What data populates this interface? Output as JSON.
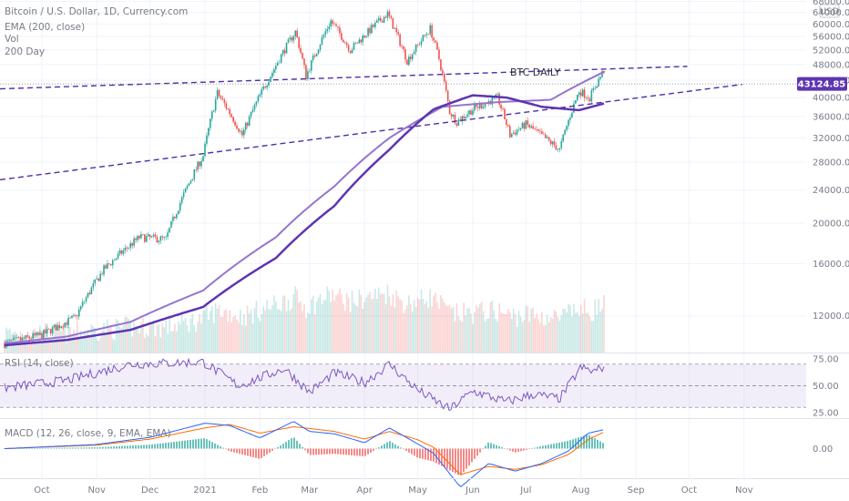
{
  "legend": {
    "symbol": "Bitcoin / U.S. Dollar, 1D, Currency.com",
    "ema": "EMA (200, close)",
    "vol": "Vol",
    "ma": "200 Day"
  },
  "annotation": "BTC DAILY",
  "currency_badge": "USD",
  "last_price_label": "43124.85",
  "rsi_label": "RSI (14, close)",
  "macd_label": "MACD (12, 26, close, 9, EMA, EMA)",
  "colors": {
    "up": "#26a69a",
    "down": "#ef5350",
    "ema": "#5e35b1",
    "sma": "#9575cd",
    "trend": "#512da8",
    "rsi": "#7e57c2",
    "macd": "#2962ff",
    "signal": "#ff6d00"
  },
  "chart_data": [
    {
      "type": "candlestick",
      "title": "Bitcoin / U.S. Dollar, 1D, Currency.com",
      "annotation": "BTC DAILY",
      "x_ticks": [
        "Oct",
        "Nov",
        "Dec",
        "2021",
        "Feb",
        "Mar",
        "Apr",
        "May",
        "Jun",
        "Jul",
        "Aug",
        "Sep",
        "Oct",
        "Nov"
      ],
      "y_ticks": [
        12000,
        16000,
        20000,
        24000,
        28000,
        32000,
        36000,
        40000,
        44000,
        48000,
        52000,
        56000,
        60000,
        64000,
        68000
      ],
      "y_tick_labels": [
        "12000.00",
        "16000.00",
        "20000.00",
        "24000.00",
        "28000.00",
        "32000.00",
        "36000.00",
        "40000.00",
        "44000.00",
        "48000.00",
        "52000.00",
        "56000.00",
        "60000.00",
        "64000.00",
        "68000.00"
      ],
      "ylim": [
        9800,
        68500
      ],
      "last_price": 43124.85,
      "price_anchors": {
        "x": [
          "2020-09-10",
          "2020-10-01",
          "2020-10-20",
          "2020-11-05",
          "2020-11-25",
          "2020-12-10",
          "2020-12-31",
          "2021-01-08",
          "2021-01-22",
          "2021-02-08",
          "2021-02-21",
          "2021-02-27",
          "2021-03-13",
          "2021-03-24",
          "2021-04-14",
          "2021-04-25",
          "2021-05-08",
          "2021-05-13",
          "2021-05-19",
          "2021-05-23",
          "2021-06-01",
          "2021-06-15",
          "2021-06-22",
          "2021-07-01",
          "2021-07-20",
          "2021-07-31",
          "2021-08-06",
          "2021-08-14"
        ],
        "close": [
          10300,
          10800,
          11900,
          15500,
          18500,
          18300,
          29000,
          41000,
          32500,
          46000,
          57500,
          45000,
          61000,
          52000,
          63500,
          49000,
          58500,
          49500,
          37000,
          35000,
          37500,
          40000,
          32500,
          34500,
          30000,
          41500,
          40000,
          46500
        ]
      },
      "series": [
        {
          "name": "EMA (200, close)",
          "x": [
            "2020-09-10",
            "2020-10-15",
            "2020-11-20",
            "2020-12-31",
            "2021-02-10",
            "2021-03-15",
            "2021-04-15",
            "2021-05-15",
            "2021-06-15",
            "2021-07-15",
            "2021-08-14"
          ],
          "y": [
            10300,
            10700,
            11600,
            13800,
            18500,
            24500,
            32000,
            38000,
            39000,
            39500,
            46100
          ]
        },
        {
          "name": "200 Day",
          "x": [
            "2020-09-10",
            "2020-10-15",
            "2020-11-20",
            "2020-12-31",
            "2021-02-10",
            "2021-03-15",
            "2021-04-15",
            "2021-05-10",
            "2021-06-01",
            "2021-06-20",
            "2021-07-10",
            "2021-07-31",
            "2021-08-14"
          ],
          "y": [
            10200,
            10500,
            11100,
            12600,
            16500,
            22000,
            30000,
            37500,
            40500,
            40000,
            38000,
            37300,
            38700
          ]
        }
      ],
      "trendlines": [
        {
          "x": [
            "2020-09-10",
            "2021-09-30"
          ],
          "y": [
            42000,
            47500
          ],
          "style": "dashed"
        },
        {
          "x": [
            "2020-09-10",
            "2021-10-31"
          ],
          "y": [
            25500,
            43000
          ],
          "style": "dashed"
        }
      ]
    },
    {
      "type": "line",
      "title": "RSI (14, close)",
      "y_ticks": [
        25,
        50,
        75
      ],
      "y_tick_labels": [
        "25.00",
        "50.00",
        "75.00"
      ],
      "ylim": [
        20,
        80
      ],
      "bands": [
        30,
        50,
        70
      ],
      "x": [
        "2020-09-10",
        "2020-10-15",
        "2020-11-20",
        "2020-12-31",
        "2021-01-20",
        "2021-02-15",
        "2021-03-01",
        "2021-03-15",
        "2021-04-01",
        "2021-04-15",
        "2021-05-01",
        "2021-05-19",
        "2021-06-01",
        "2021-06-20",
        "2021-07-05",
        "2021-07-20",
        "2021-08-01",
        "2021-08-08",
        "2021-08-14"
      ],
      "y": [
        48,
        55,
        70,
        72,
        50,
        66,
        44,
        62,
        53,
        70,
        46,
        28,
        45,
        35,
        42,
        38,
        67,
        63,
        68
      ]
    },
    {
      "type": "bar+line",
      "title": "MACD (12, 26, close, 9, EMA, EMA)",
      "y_ticks": [
        0
      ],
      "y_tick_labels": [
        "0.00"
      ],
      "ylim": [
        -5000,
        5000
      ],
      "x": [
        "2020-09-10",
        "2020-11-01",
        "2020-12-01",
        "2021-01-01",
        "2021-01-15",
        "2021-02-01",
        "2021-02-20",
        "2021-03-01",
        "2021-03-15",
        "2021-04-01",
        "2021-04-15",
        "2021-05-01",
        "2021-05-10",
        "2021-05-25",
        "2021-06-10",
        "2021-06-25",
        "2021-07-10",
        "2021-07-25",
        "2021-08-05",
        "2021-08-14"
      ],
      "series": [
        {
          "name": "MACD",
          "y": [
            0,
            700,
            1900,
            4300,
            3900,
            1800,
            4600,
            2900,
            2500,
            1000,
            3500,
            800,
            -800,
            -6500,
            -2500,
            -3800,
            -2500,
            -400,
            2600,
            3200
          ]
        },
        {
          "name": "Signal",
          "y": [
            0,
            600,
            1600,
            3500,
            4100,
            2600,
            3700,
            3400,
            2900,
            1600,
            2900,
            1500,
            200,
            -4400,
            -3000,
            -3500,
            -2700,
            -1000,
            1500,
            2800
          ]
        }
      ]
    }
  ]
}
